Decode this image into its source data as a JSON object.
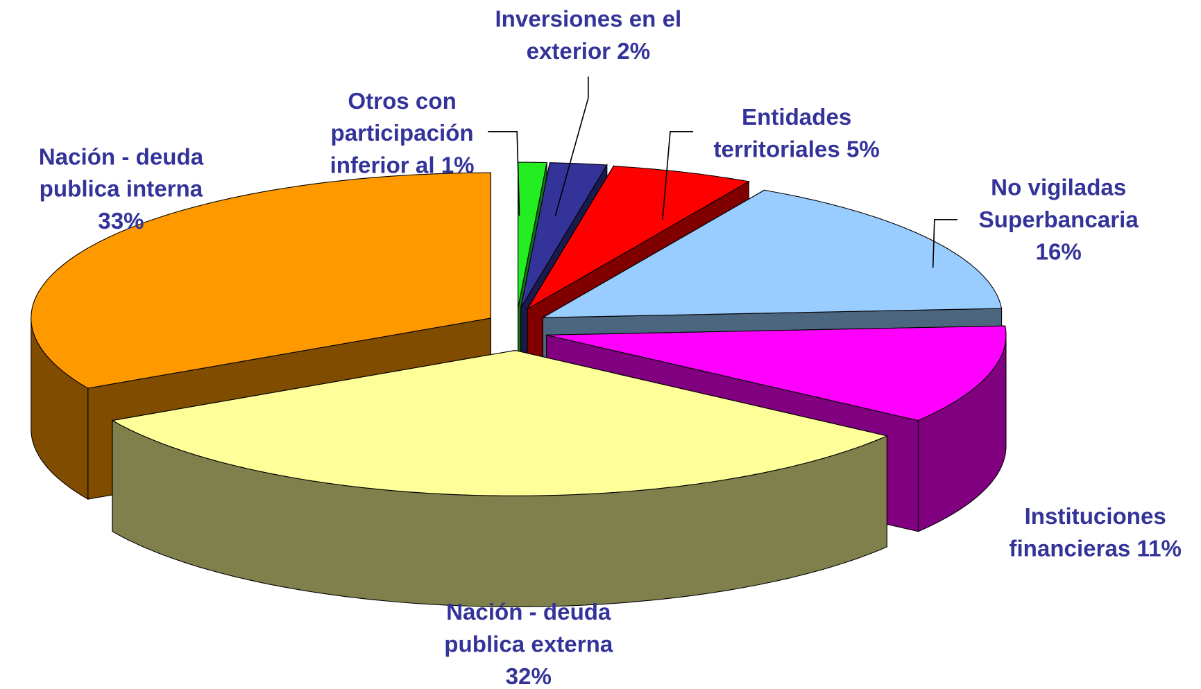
{
  "chart_data": {
    "type": "pie3d",
    "categories": [
      "Otros con participación inferior al 1%",
      "Inversiones en el exterior",
      "Entidades territoriales",
      "No vigiladas Superbancaria",
      "Instituciones financieras",
      "Nación - deuda publica  externa",
      "Nación - deuda publica interna"
    ],
    "values": [
      1,
      2,
      5,
      16,
      11,
      32,
      33
    ],
    "value_labels": [
      null,
      "2%",
      "5%",
      "16%",
      "11%",
      "32%",
      "33%"
    ],
    "colors": [
      "#22ee22",
      "#333399",
      "#ff0000",
      "#99ccff",
      "#ff00ff",
      "#ffff99",
      "#ff9900"
    ]
  }
}
